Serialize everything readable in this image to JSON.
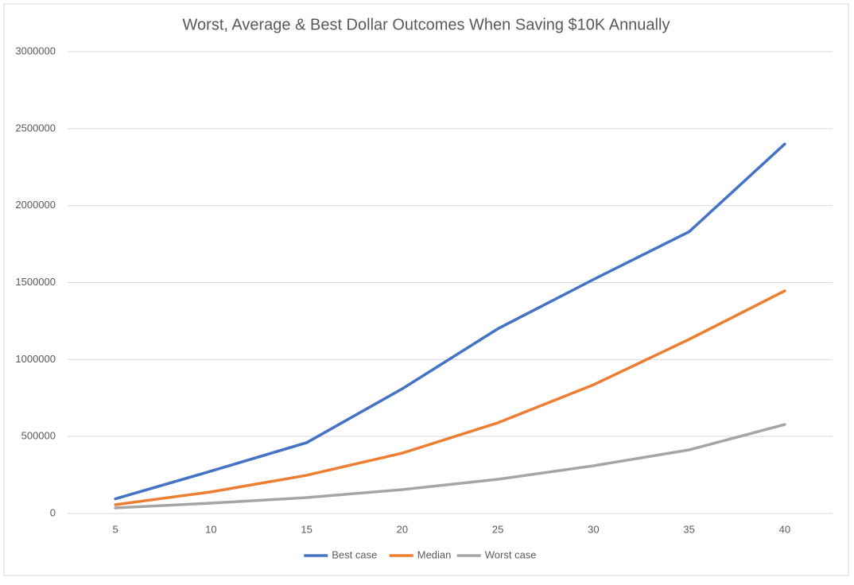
{
  "chart_data": {
    "type": "line",
    "title": "Worst, Average & Best Dollar Outcomes When Saving $10K Annually",
    "categories": [
      "5",
      "10",
      "15",
      "20",
      "25",
      "30",
      "35",
      "40"
    ],
    "series": [
      {
        "name": "Best case",
        "color": "#4472c4",
        "values": [
          95000,
          275000,
          460000,
          810000,
          1200000,
          1520000,
          1830000,
          2400000
        ]
      },
      {
        "name": "Median",
        "color": "#ed7d31",
        "values": [
          57000,
          140000,
          248000,
          392000,
          589000,
          836000,
          1131000,
          1446000
        ]
      },
      {
        "name": "Worst case",
        "color": "#a5a5a5",
        "values": [
          36000,
          67000,
          103000,
          155000,
          222000,
          310000,
          413000,
          578000
        ]
      }
    ],
    "ylim": [
      0,
      3000000
    ],
    "yticks": [
      0,
      500000,
      1000000,
      1500000,
      2000000,
      2500000,
      3000000
    ],
    "grid": true,
    "legend": "bottom"
  }
}
